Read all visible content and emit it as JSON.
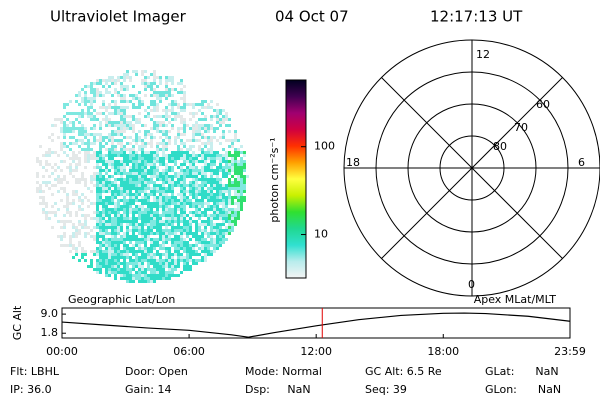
{
  "header": {
    "title": "Ultraviolet Imager",
    "date": "04 Oct 07",
    "time": "12:17:13 UT"
  },
  "colorbar": {
    "label": "photon cm⁻²s⁻¹",
    "log": true,
    "range": [
      3.2,
      575
    ],
    "ticks": [
      10,
      100
    ],
    "colors": [
      "#f4f4f4",
      "#b8ecec",
      "#30e0d0",
      "#20d890",
      "#30e030",
      "#c8f000",
      "#ffff40",
      "#ffa000",
      "#ff3000",
      "#d00040",
      "#a00070",
      "#400050",
      "#000020"
    ]
  },
  "polar": {
    "labels": {
      "top": "12",
      "left": "18",
      "right": "6",
      "bottom": "0"
    },
    "rings": [
      "60",
      "70",
      "80"
    ]
  },
  "chart_data": {
    "type": "line",
    "ylabel": "GC Alt",
    "left_label": "Geographic Lat/Lon",
    "right_label": "Apex MLat/MLT",
    "x": [
      0,
      2,
      4,
      6,
      8,
      8.8,
      10,
      12,
      14,
      16,
      18,
      19,
      20,
      22,
      23.983
    ],
    "series": [
      {
        "name": "GC Alt",
        "color": "#000000",
        "values": [
          6.0,
          4.9,
          3.8,
          2.9,
          1.2,
          0.3,
          2.0,
          4.6,
          6.9,
          8.5,
          9.3,
          9.4,
          9.2,
          8.2,
          6.3
        ]
      }
    ],
    "xlim": [
      0,
      23.983
    ],
    "ylim": [
      0,
      11.3
    ],
    "xticks": [
      {
        "value": 0,
        "label": "00:00"
      },
      {
        "value": 6,
        "label": "06:00"
      },
      {
        "value": 12,
        "label": "12:00"
      },
      {
        "value": 18,
        "label": "18:00"
      },
      {
        "value": 23.983,
        "label": "23:59"
      }
    ],
    "yticks": [
      {
        "value": 1.8,
        "label": "1.8"
      },
      {
        "value": 9.0,
        "label": "9.0"
      }
    ],
    "marker_x": 12.287,
    "marker_color": "#e00000"
  },
  "info": [
    [
      "Flt: LBHL",
      "IP: 36.0"
    ],
    [
      "Door: Open",
      "Gain: 14"
    ],
    [
      "Mode: Normal",
      "Dsp:     NaN"
    ],
    [
      "GC Alt: 6.5 Re",
      "Seq: 39"
    ],
    [
      "GLat:      NaN",
      "GLon:      NaN"
    ]
  ]
}
